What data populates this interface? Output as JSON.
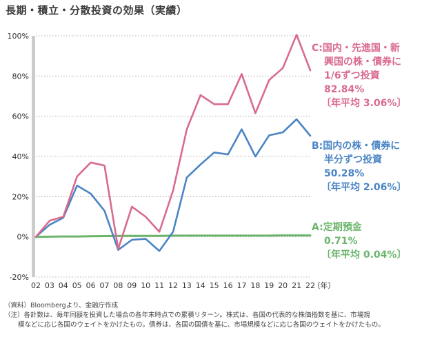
{
  "chart_data": {
    "type": "line",
    "title": "長期・積立・分散投資の効果（実績）",
    "x_unit": "（年）",
    "categories": [
      "02",
      "03",
      "04",
      "05",
      "06",
      "07",
      "08",
      "09",
      "10",
      "11",
      "12",
      "13",
      "14",
      "15",
      "16",
      "17",
      "18",
      "19",
      "20",
      "21",
      "22"
    ],
    "ylim": [
      -20,
      100
    ],
    "yticks": [
      "100%",
      "80%",
      "60%",
      "40%",
      "20%",
      "0%",
      "-20%"
    ],
    "ytick_values": [
      100,
      80,
      60,
      40,
      20,
      0,
      -20
    ],
    "grid": "horizontal-dotted",
    "series": [
      {
        "key": "C",
        "color": "#d96a8e",
        "values": [
          0,
          8,
          10,
          30,
          37,
          35.5,
          -6,
          15,
          10,
          2.5,
          23,
          53.5,
          70.5,
          66,
          66,
          81,
          61.5,
          78,
          84,
          100.5,
          82.84
        ]
      },
      {
        "key": "B",
        "color": "#4a84c4",
        "values": [
          0,
          6,
          9.5,
          25.5,
          21.5,
          13,
          -6.5,
          -1.5,
          -1,
          -7,
          2.5,
          29.5,
          36,
          42,
          41,
          53.5,
          40,
          50.5,
          52,
          58.5,
          50.28
        ]
      },
      {
        "key": "A",
        "color": "#6ab56a",
        "values": [
          0,
          0.1,
          0.2,
          0.2,
          0.3,
          0.4,
          0.5,
          0.5,
          0.5,
          0.5,
          0.6,
          0.6,
          0.6,
          0.6,
          0.6,
          0.6,
          0.6,
          0.6,
          0.7,
          0.7,
          0.71
        ]
      }
    ]
  },
  "legend": {
    "c": {
      "line1": "C:国内・先進国・新",
      "line2": "興国の株・債券に",
      "line3": "1/6ずつ投資",
      "value": "82.84%",
      "annual": "〔年平均 3.06%〕"
    },
    "b": {
      "line1": "B:国内の株・債券に",
      "line2": "半分ずつ投資",
      "value": "50.28%",
      "annual": "〔年平均 2.06%〕"
    },
    "a": {
      "line1": "A:定期預金",
      "value": "0.71%",
      "annual": "〔年平均 0.04%〕"
    }
  },
  "notes": {
    "source": "（資料）Bloombergより、金融庁作成",
    "note1": "（注）各計数は、毎年同額を投資した場合の各年末時点での累積リターン。株式は、各国の代表的な株価指数を基に、市場規",
    "note2": "模などに応じ各国のウェイトをかけたもの。債券は、各国の国債を基に、市場規模などに応じ各国のウェイトをかけたもの。"
  }
}
